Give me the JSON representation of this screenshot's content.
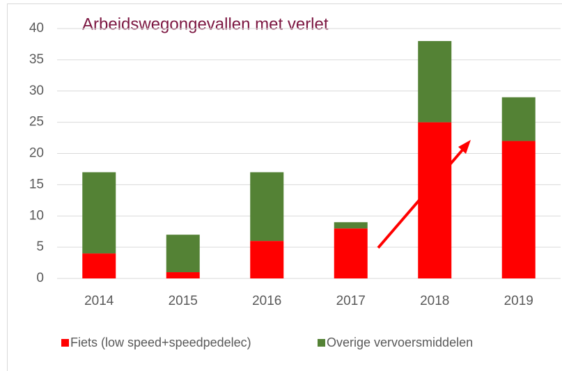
{
  "chart_data": {
    "type": "stacked_bar",
    "title": "Arbeidswegongevallen met verlet",
    "categories": [
      "2014",
      "2015",
      "2016",
      "2017",
      "2018",
      "2019"
    ],
    "series": [
      {
        "name": "Fiets (low speed+speedpedelec)",
        "color": "#ff0000",
        "values": [
          4,
          1,
          6,
          8,
          25,
          22
        ]
      },
      {
        "name": "Overige vervoersmiddelen",
        "color": "#548235",
        "values": [
          13,
          6,
          11,
          1,
          13,
          7
        ]
      }
    ],
    "ylim": [
      0,
      40
    ],
    "yticks": [
      0,
      5,
      10,
      15,
      20,
      25,
      30,
      35,
      40
    ],
    "grid": true,
    "legend": "bottom"
  }
}
